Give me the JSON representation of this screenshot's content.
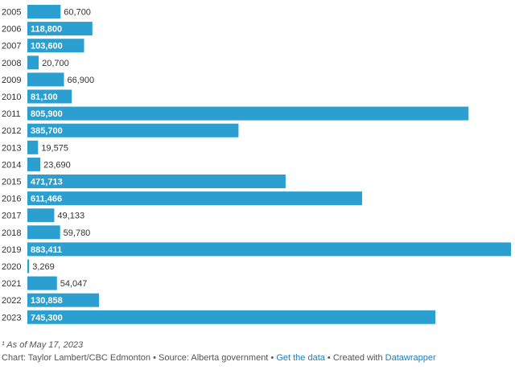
{
  "chart_data": {
    "type": "bar",
    "orientation": "horizontal",
    "categories": [
      "2005",
      "2006",
      "2007",
      "2008",
      "2009",
      "2010",
      "2011",
      "2012",
      "2013",
      "2014",
      "2015",
      "2016",
      "2017",
      "2018",
      "2019",
      "2020",
      "2021",
      "2022",
      "2023"
    ],
    "values": [
      60700,
      118800,
      103600,
      20700,
      66900,
      81100,
      805900,
      385700,
      19575,
      23690,
      471713,
      611466,
      49133,
      59780,
      883411,
      3269,
      54047,
      130858,
      745300
    ],
    "value_labels": [
      "60,700",
      "118,800",
      "103,600",
      "20,700",
      "66,900",
      "81,100",
      "805,900",
      "385,700",
      "19,575",
      "23,690",
      "471,713",
      "611,466",
      "49,133",
      "59,780",
      "883,411",
      "3,269",
      "54,047",
      "130,858",
      "745,300"
    ],
    "bar_color": "#2b9fcf",
    "grid": false
  },
  "footnote": "¹ As of May 17, 2023",
  "credit": {
    "prefix": "Chart: Taylor Lambert/CBC Edmonton • Source: Alberta government • ",
    "data_link": "Get the data",
    "middle": " • Created with ",
    "tool_link": "Datawrapper"
  }
}
